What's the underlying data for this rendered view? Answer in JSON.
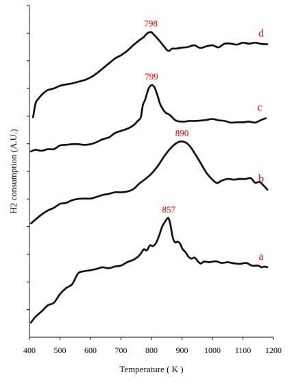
{
  "chart_data": {
    "type": "line",
    "title": "",
    "xlabel": "Temperature ( K )",
    "ylabel": "H2 consumption (A.U.)",
    "xlim": [
      400,
      1200
    ],
    "x_ticks": [
      400,
      500,
      600,
      700,
      800,
      900,
      1000,
      1100,
      1200
    ],
    "ylim": [
      0,
      1
    ],
    "y_ticks_labeled": false,
    "annotation_color": "#cc0000",
    "curve_color": "#000000",
    "series": [
      {
        "name": "a",
        "peak_label": "857",
        "peak_x": 857,
        "points": [
          [
            405,
            0.044
          ],
          [
            420,
            0.062
          ],
          [
            440,
            0.078
          ],
          [
            460,
            0.096
          ],
          [
            480,
            0.104
          ],
          [
            500,
            0.13
          ],
          [
            520,
            0.148
          ],
          [
            540,
            0.16
          ],
          [
            560,
            0.193
          ],
          [
            580,
            0.199
          ],
          [
            600,
            0.202
          ],
          [
            620,
            0.206
          ],
          [
            640,
            0.211
          ],
          [
            660,
            0.208
          ],
          [
            680,
            0.213
          ],
          [
            700,
            0.216
          ],
          [
            720,
            0.226
          ],
          [
            740,
            0.233
          ],
          [
            755,
            0.242
          ],
          [
            765,
            0.252
          ],
          [
            775,
            0.265
          ],
          [
            785,
            0.262
          ],
          [
            795,
            0.277
          ],
          [
            805,
            0.275
          ],
          [
            815,
            0.284
          ],
          [
            825,
            0.306
          ],
          [
            835,
            0.333
          ],
          [
            845,
            0.349
          ],
          [
            855,
            0.359
          ],
          [
            862,
            0.34
          ],
          [
            870,
            0.3
          ],
          [
            878,
            0.286
          ],
          [
            886,
            0.288
          ],
          [
            894,
            0.282
          ],
          [
            902,
            0.266
          ],
          [
            912,
            0.256
          ],
          [
            922,
            0.242
          ],
          [
            932,
            0.237
          ],
          [
            942,
            0.24
          ],
          [
            952,
            0.229
          ],
          [
            962,
            0.222
          ],
          [
            972,
            0.228
          ],
          [
            990,
            0.226
          ],
          [
            1010,
            0.229
          ],
          [
            1030,
            0.224
          ],
          [
            1050,
            0.226
          ],
          [
            1070,
            0.223
          ],
          [
            1090,
            0.221
          ],
          [
            1110,
            0.224
          ],
          [
            1130,
            0.216
          ],
          [
            1150,
            0.216
          ],
          [
            1160,
            0.211
          ],
          [
            1170,
            0.213
          ],
          [
            1180,
            0.211
          ]
        ]
      },
      {
        "name": "b",
        "peak_label": "890",
        "peak_x": 900,
        "points": [
          [
            405,
            0.343
          ],
          [
            420,
            0.355
          ],
          [
            440,
            0.37
          ],
          [
            460,
            0.382
          ],
          [
            480,
            0.39
          ],
          [
            500,
            0.402
          ],
          [
            520,
            0.405
          ],
          [
            540,
            0.413
          ],
          [
            560,
            0.417
          ],
          [
            580,
            0.418
          ],
          [
            600,
            0.418
          ],
          [
            620,
            0.423
          ],
          [
            640,
            0.429
          ],
          [
            660,
            0.432
          ],
          [
            680,
            0.437
          ],
          [
            700,
            0.437
          ],
          [
            720,
            0.439
          ],
          [
            740,
            0.446
          ],
          [
            760,
            0.463
          ],
          [
            780,
            0.477
          ],
          [
            800,
            0.493
          ],
          [
            820,
            0.515
          ],
          [
            840,
            0.543
          ],
          [
            860,
            0.567
          ],
          [
            880,
            0.584
          ],
          [
            895,
            0.59
          ],
          [
            910,
            0.588
          ],
          [
            925,
            0.577
          ],
          [
            940,
            0.557
          ],
          [
            960,
            0.527
          ],
          [
            980,
            0.496
          ],
          [
            1000,
            0.475
          ],
          [
            1015,
            0.465
          ],
          [
            1030,
            0.472
          ],
          [
            1050,
            0.477
          ],
          [
            1070,
            0.475
          ],
          [
            1090,
            0.477
          ],
          [
            1110,
            0.477
          ],
          [
            1125,
            0.48
          ],
          [
            1140,
            0.466
          ],
          [
            1155,
            0.468
          ],
          [
            1170,
            0.455
          ],
          [
            1180,
            0.445
          ]
        ]
      },
      {
        "name": "c",
        "peak_label": "799",
        "peak_x": 800,
        "points": [
          [
            405,
            0.56
          ],
          [
            420,
            0.565
          ],
          [
            440,
            0.562
          ],
          [
            460,
            0.567
          ],
          [
            480,
            0.567
          ],
          [
            500,
            0.578
          ],
          [
            520,
            0.58
          ],
          [
            540,
            0.582
          ],
          [
            560,
            0.582
          ],
          [
            580,
            0.58
          ],
          [
            600,
            0.582
          ],
          [
            620,
            0.588
          ],
          [
            640,
            0.597
          ],
          [
            660,
            0.602
          ],
          [
            680,
            0.615
          ],
          [
            700,
            0.622
          ],
          [
            720,
            0.628
          ],
          [
            740,
            0.638
          ],
          [
            755,
            0.652
          ],
          [
            765,
            0.663
          ],
          [
            772,
            0.7
          ],
          [
            780,
            0.718
          ],
          [
            790,
            0.748
          ],
          [
            800,
            0.76
          ],
          [
            810,
            0.753
          ],
          [
            820,
            0.728
          ],
          [
            830,
            0.7
          ],
          [
            845,
            0.678
          ],
          [
            860,
            0.67
          ],
          [
            880,
            0.653
          ],
          [
            900,
            0.65
          ],
          [
            910,
            0.65
          ],
          [
            925,
            0.652
          ],
          [
            940,
            0.652
          ],
          [
            960,
            0.653
          ],
          [
            980,
            0.655
          ],
          [
            1000,
            0.658
          ],
          [
            1020,
            0.654
          ],
          [
            1040,
            0.652
          ],
          [
            1060,
            0.647
          ],
          [
            1080,
            0.648
          ],
          [
            1100,
            0.648
          ],
          [
            1120,
            0.65
          ],
          [
            1140,
            0.647
          ],
          [
            1160,
            0.655
          ],
          [
            1175,
            0.66
          ]
        ]
      },
      {
        "name": "d",
        "peak_label": "798",
        "peak_x": 798,
        "points": [
          [
            412,
            0.663
          ],
          [
            420,
            0.705
          ],
          [
            430,
            0.72
          ],
          [
            445,
            0.735
          ],
          [
            460,
            0.745
          ],
          [
            480,
            0.75
          ],
          [
            500,
            0.758
          ],
          [
            520,
            0.762
          ],
          [
            540,
            0.765
          ],
          [
            560,
            0.77
          ],
          [
            580,
            0.775
          ],
          [
            600,
            0.783
          ],
          [
            620,
            0.795
          ],
          [
            640,
            0.81
          ],
          [
            660,
            0.825
          ],
          [
            680,
            0.84
          ],
          [
            700,
            0.85
          ],
          [
            720,
            0.863
          ],
          [
            740,
            0.88
          ],
          [
            760,
            0.895
          ],
          [
            775,
            0.905
          ],
          [
            785,
            0.915
          ],
          [
            798,
            0.92
          ],
          [
            810,
            0.91
          ],
          [
            825,
            0.895
          ],
          [
            840,
            0.878
          ],
          [
            855,
            0.863
          ],
          [
            868,
            0.87
          ],
          [
            880,
            0.87
          ],
          [
            900,
            0.873
          ],
          [
            920,
            0.875
          ],
          [
            940,
            0.88
          ],
          [
            960,
            0.872
          ],
          [
            980,
            0.877
          ],
          [
            1000,
            0.88
          ],
          [
            1020,
            0.874
          ],
          [
            1040,
            0.885
          ],
          [
            1060,
            0.885
          ],
          [
            1080,
            0.882
          ],
          [
            1100,
            0.888
          ],
          [
            1120,
            0.885
          ],
          [
            1140,
            0.888
          ],
          [
            1160,
            0.884
          ],
          [
            1180,
            0.883
          ]
        ]
      }
    ]
  }
}
